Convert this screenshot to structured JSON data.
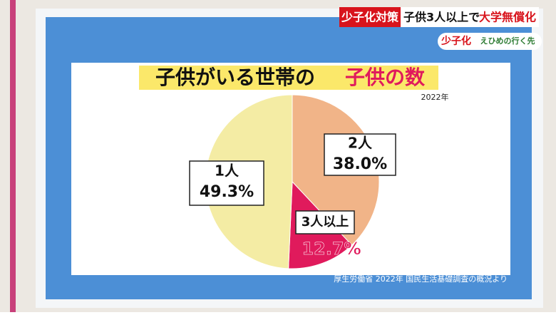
{
  "banner": {
    "tag": "少子化対策",
    "headline": "子供3人以上で",
    "headline_highlight": "大学無償化",
    "series_title": "少子化",
    "series_subtitle": "えひめの行く先"
  },
  "chart_data": {
    "type": "pie",
    "title": "子供がいる世帯の",
    "title_highlight": "子供の数",
    "subtitle": "2022年",
    "source": "厚生労働省 2022年 国民生活基礎調査の概況より",
    "categories": [
      "2人",
      "3人以上",
      "1人"
    ],
    "values": [
      38.0,
      12.7,
      49.3
    ],
    "value_labels": [
      "38.0%",
      "12.7%",
      "49.3%"
    ],
    "colors": [
      "#f1b488",
      "#e01a5c",
      "#f4eca4"
    ]
  }
}
